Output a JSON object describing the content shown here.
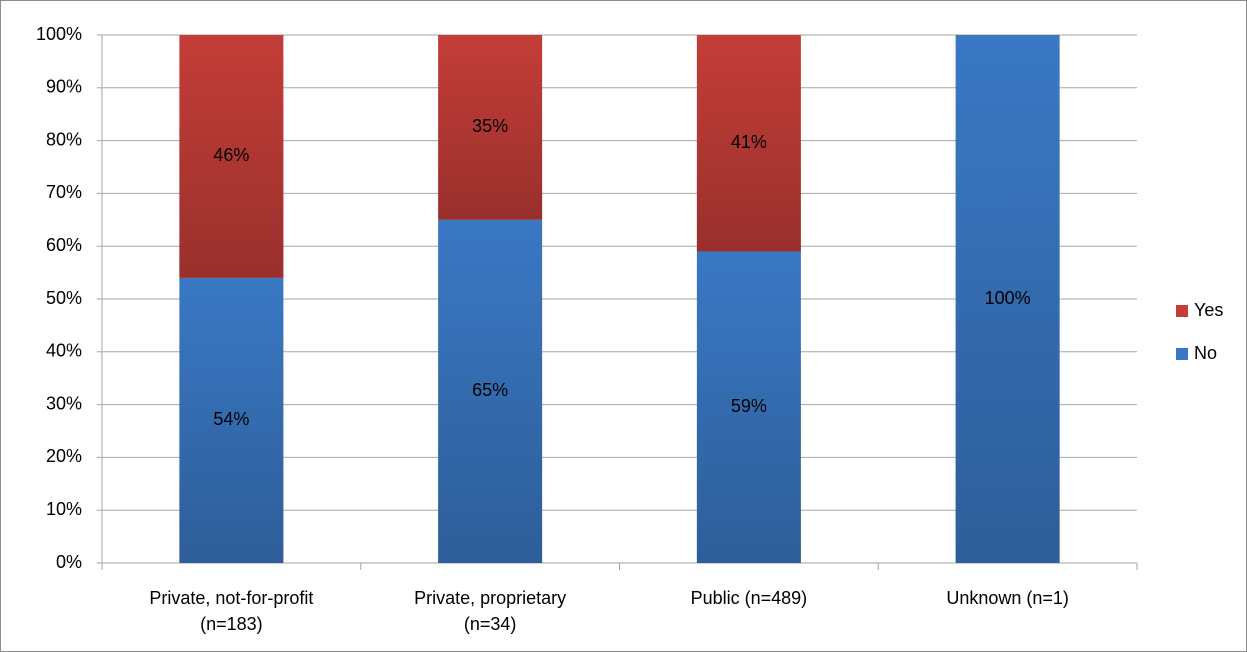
{
  "chart_data": {
    "type": "stacked_bar",
    "categories": [
      "Private, not-for-profit\n(n=183)",
      "Private, proprietary\n(n=34)",
      "Public (n=489)",
      "Unknown (n=1)"
    ],
    "series": [
      {
        "name": "No",
        "color": "#3a78c4",
        "values": [
          54,
          65,
          59,
          100
        ],
        "value_labels": [
          "54%",
          "65%",
          "59%",
          "100%"
        ]
      },
      {
        "name": "Yes",
        "color": "#c43d38",
        "values": [
          46,
          35,
          41,
          null
        ],
        "value_labels": [
          "46%",
          "35%",
          "41%",
          null
        ]
      }
    ],
    "ylim": [
      0,
      100
    ],
    "yticks": [
      {
        "value": 0,
        "label": "0%"
      },
      {
        "value": 10,
        "label": "10%"
      },
      {
        "value": 20,
        "label": "20%"
      },
      {
        "value": 30,
        "label": "30%"
      },
      {
        "value": 40,
        "label": "40%"
      },
      {
        "value": 50,
        "label": "50%"
      },
      {
        "value": 60,
        "label": "60%"
      },
      {
        "value": 70,
        "label": "70%"
      },
      {
        "value": 80,
        "label": "80%"
      },
      {
        "value": 90,
        "label": "90%"
      },
      {
        "value": 100,
        "label": "100%"
      }
    ],
    "grid": true,
    "legend": "right"
  }
}
